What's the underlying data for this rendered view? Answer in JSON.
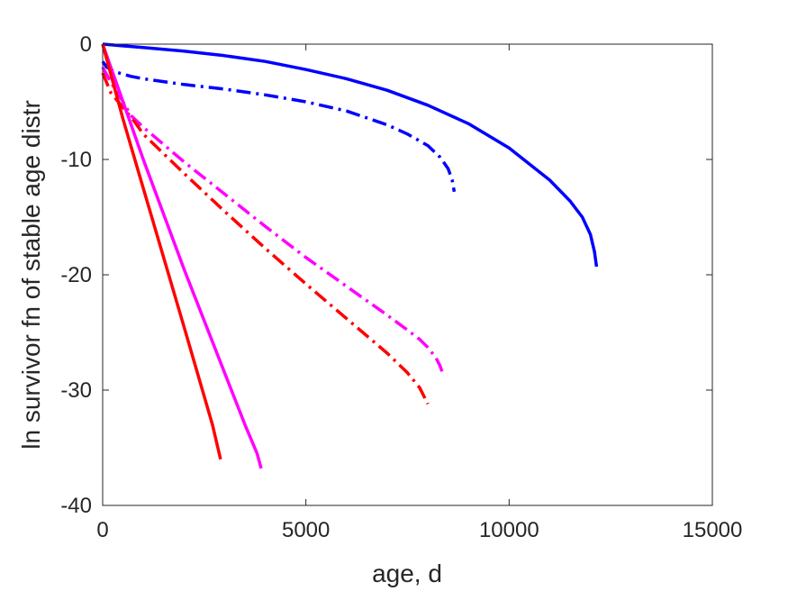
{
  "chart_data": {
    "type": "line",
    "title": "",
    "xlabel": "age, d",
    "ylabel": "ln survivor fn of stable age distr",
    "xlim": [
      0,
      15000
    ],
    "ylim": [
      -40,
      0
    ],
    "xticks": [
      0,
      5000,
      10000,
      15000
    ],
    "yticks": [
      -40,
      -30,
      -20,
      -10,
      0
    ],
    "xtick_labels": [
      "0",
      "5000",
      "10000",
      "15000"
    ],
    "ytick_labels": [
      "-40",
      "-30",
      "-20",
      "-10",
      "0"
    ],
    "grid": false,
    "legend": "none",
    "series": [
      {
        "color": "#0000ff",
        "dash": "solid",
        "x": [
          0,
          1000,
          2000,
          3000,
          4000,
          5000,
          6000,
          7000,
          8000,
          9000,
          10000,
          11000,
          11500,
          11800,
          12000,
          12100,
          12150
        ],
        "y": [
          0,
          -0.3,
          -0.6,
          -1.0,
          -1.5,
          -2.2,
          -3.0,
          -4.0,
          -5.3,
          -6.9,
          -9.0,
          -11.8,
          -13.6,
          -15.0,
          -16.5,
          -18.0,
          -19.3
        ]
      },
      {
        "color": "#0000ff",
        "dash": "dashdot",
        "x": [
          0,
          100,
          300,
          700,
          1000,
          2000,
          3000,
          4000,
          5000,
          6000,
          7000,
          7500,
          8000,
          8300,
          8500,
          8600,
          8650
        ],
        "y": [
          -1.5,
          -2.0,
          -2.4,
          -2.8,
          -3.0,
          -3.5,
          -3.9,
          -4.4,
          -5.0,
          -5.8,
          -7.0,
          -7.8,
          -8.8,
          -9.8,
          -10.8,
          -11.8,
          -12.8
        ]
      },
      {
        "color": "#ff00ff",
        "dash": "dashdot",
        "x": [
          0,
          200,
          500,
          700,
          1000,
          2000,
          3000,
          4000,
          5000,
          6000,
          7000,
          7500,
          7800,
          8000,
          8200,
          8300,
          8350
        ],
        "y": [
          -2.0,
          -3.3,
          -5.0,
          -6.2,
          -7.2,
          -10.2,
          -13.0,
          -15.8,
          -18.5,
          -21.0,
          -23.5,
          -24.8,
          -25.6,
          -26.3,
          -27.2,
          -27.9,
          -28.4
        ]
      },
      {
        "color": "#ff0000",
        "dash": "dashdot",
        "x": [
          0,
          200,
          500,
          800,
          1000,
          2000,
          3000,
          4000,
          5000,
          6000,
          7000,
          7500,
          7800,
          8000
        ],
        "y": [
          -2.5,
          -4.2,
          -5.5,
          -6.8,
          -7.8,
          -11.2,
          -14.5,
          -17.7,
          -20.8,
          -23.8,
          -26.8,
          -28.5,
          -29.8,
          -31.2
        ]
      },
      {
        "color": "#ff00ff",
        "dash": "solid",
        "x": [
          0,
          500,
          1000,
          2000,
          3000,
          3500,
          3800,
          3900
        ],
        "y": [
          0,
          -5.0,
          -10.0,
          -19.5,
          -28.5,
          -33.0,
          -35.5,
          -36.8
        ]
      },
      {
        "color": "#ff0000",
        "dash": "solid",
        "x": [
          0,
          500,
          1000,
          2000,
          2700,
          2900
        ],
        "y": [
          0,
          -6.5,
          -12.5,
          -24.5,
          -33.0,
          -36.0
        ]
      }
    ]
  }
}
